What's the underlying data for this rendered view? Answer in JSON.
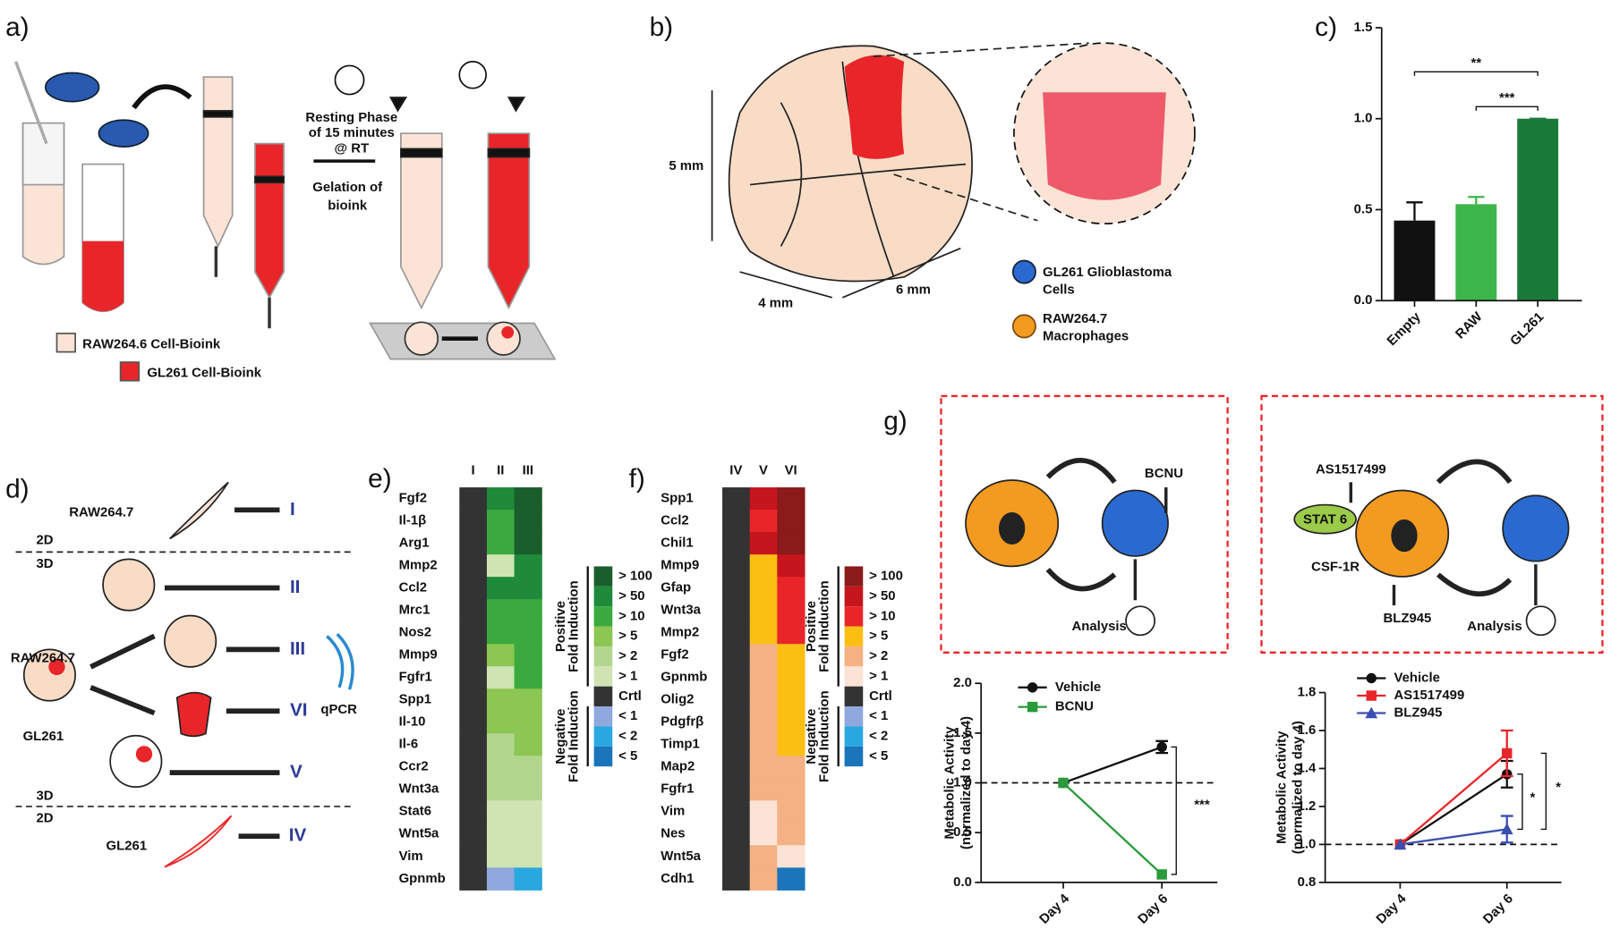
{
  "panel_labels": [
    "a)",
    "b)",
    "c)",
    "d)",
    "e)",
    "f)",
    "g)"
  ],
  "panel_a": {
    "resting": [
      "Resting Phase",
      "of 15 minutes",
      "@ RT"
    ],
    "gelation": [
      "Gelation of",
      "bioink"
    ],
    "legend": [
      "RAW264.6 Cell-Bioink",
      "GL261 Cell-Bioink"
    ]
  },
  "panel_b": {
    "dims": [
      "5 mm",
      "4 mm",
      "6 mm"
    ],
    "legend": [
      [
        "GL261 Glioblastoma",
        "Cells"
      ],
      [
        "RAW264.7",
        "Macrophages"
      ]
    ]
  },
  "panel_d": {
    "texts": [
      "RAW264.7",
      "2D",
      "3D",
      "RAW264.7",
      "GL261",
      "3D",
      "2D",
      "GL261",
      "qPCR"
    ],
    "groups": [
      "I",
      "II",
      "III",
      "VI",
      "V",
      "IV"
    ]
  },
  "panel_g": {
    "left": [
      "BCNU",
      "Analysis"
    ],
    "right": [
      "AS1517499",
      "STAT 6",
      "CSF-1R",
      "BLZ945",
      "Analysis"
    ]
  },
  "chart_data": [
    {
      "type": "bar",
      "categories": [
        "Empty",
        "RAW",
        "GL261"
      ],
      "values": [
        0.44,
        0.53,
        1.0
      ],
      "errors": [
        0.1,
        0.04,
        0
      ],
      "colors": [
        "#111111",
        "#3cb54a",
        "#1a7a3a"
      ],
      "ylim": [
        0,
        1.5
      ],
      "yticks": [
        {
          "value": 0,
          "label": "0.0"
        },
        0.5,
        {
          "value": 1,
          "label": "1.0"
        },
        1.5
      ],
      "annotations": [
        "**",
        "***"
      ]
    },
    {
      "type": "heatmap",
      "columns": [
        "I",
        "II",
        "III"
      ],
      "rows": [
        "Fgf2",
        "Il-1β",
        "Arg1",
        "Mmp2",
        "Ccl2",
        "Mrc1",
        "Nos2",
        "Mmp9",
        "Fgfr1",
        "Spp1",
        "Il-10",
        "Il-6",
        "Ccr2",
        "Wnt3a",
        "Stat6",
        "Wnt5a",
        "Vim",
        "Gpnmb"
      ],
      "cells": [
        [
          "#333333",
          "#1f8a3a",
          "#1a5e2c"
        ],
        [
          "#333333",
          "#3aaa3f",
          "#1a5e2c"
        ],
        [
          "#333333",
          "#3aaa3f",
          "#1a5e2c"
        ],
        [
          "#333333",
          "#cfe4b2",
          "#1f8a3a"
        ],
        [
          "#333333",
          "#1f8a3a",
          "#1f8a3a"
        ],
        [
          "#333333",
          "#3aaa3f",
          "#3aaa3f"
        ],
        [
          "#333333",
          "#3aaa3f",
          "#3aaa3f"
        ],
        [
          "#333333",
          "#8cc653",
          "#3aaa3f"
        ],
        [
          "#333333",
          "#cfe4b2",
          "#3aaa3f"
        ],
        [
          "#333333",
          "#8cc653",
          "#8cc653"
        ],
        [
          "#333333",
          "#8cc653",
          "#8cc653"
        ],
        [
          "#333333",
          "#b3d68f",
          "#8cc653"
        ],
        [
          "#333333",
          "#b3d68f",
          "#b3d68f"
        ],
        [
          "#333333",
          "#b3d68f",
          "#b3d68f"
        ],
        [
          "#333333",
          "#cfe4b2",
          "#cfe4b2"
        ],
        [
          "#333333",
          "#cfe4b2",
          "#cfe4b2"
        ],
        [
          "#333333",
          "#cfe4b2",
          "#cfe4b2"
        ],
        [
          "#333333",
          "#8fa8dd",
          "#29a8e0"
        ]
      ],
      "legend": [
        {
          "label": "> 100",
          "color": "#1a5e2c"
        },
        {
          "label": "> 50",
          "color": "#1f8a3a"
        },
        {
          "label": "> 10",
          "color": "#3aaa3f"
        },
        {
          "label": "> 5",
          "color": "#8cc653"
        },
        {
          "label": "> 2",
          "color": "#b3d68f"
        },
        {
          "label": "> 1",
          "color": "#cfe4b2"
        },
        {
          "label": "Crtl",
          "color": "#333333"
        },
        {
          "label": "< 1",
          "color": "#8fa8dd"
        },
        {
          "label": "< 2",
          "color": "#29a8e0"
        },
        {
          "label": "< 5",
          "color": "#1b75bb"
        }
      ],
      "legend_titles": [
        [
          "Positive",
          "Fold Induction"
        ],
        [
          "Negative",
          "Fold Induction"
        ]
      ]
    },
    {
      "type": "heatmap",
      "columns": [
        "IV",
        "V",
        "VI"
      ],
      "rows": [
        "Spp1",
        "Ccl2",
        "Chil1",
        "Mmp9",
        "Gfap",
        "Wnt3a",
        "Mmp2",
        "Fgf2",
        "Gpnmb",
        "Olig2",
        "Pdgfrβ",
        "Timp1",
        "Map2",
        "Fgfr1",
        "Vim",
        "Nes",
        "Wnt5a",
        "Cdh1"
      ],
      "cells": [
        [
          "#333333",
          "#c4161c",
          "#8b1a1a"
        ],
        [
          "#333333",
          "#e8262a",
          "#8b1a1a"
        ],
        [
          "#333333",
          "#c4161c",
          "#8b1a1a"
        ],
        [
          "#333333",
          "#fbbf14",
          "#c4161c"
        ],
        [
          "#333333",
          "#fbbf14",
          "#e8262a"
        ],
        [
          "#333333",
          "#fbbf14",
          "#e8262a"
        ],
        [
          "#333333",
          "#fbbf14",
          "#e8262a"
        ],
        [
          "#333333",
          "#f4b183",
          "#fbbf14"
        ],
        [
          "#333333",
          "#f4b183",
          "#fbbf14"
        ],
        [
          "#333333",
          "#f4b183",
          "#fbbf14"
        ],
        [
          "#333333",
          "#f4b183",
          "#fbbf14"
        ],
        [
          "#333333",
          "#f4b183",
          "#fbbf14"
        ],
        [
          "#333333",
          "#f4b183",
          "#f4b183"
        ],
        [
          "#333333",
          "#f4b183",
          "#f4b183"
        ],
        [
          "#333333",
          "#fbe3d6",
          "#f4b183"
        ],
        [
          "#333333",
          "#fbe3d6",
          "#f4b183"
        ],
        [
          "#333333",
          "#f4b183",
          "#fbe3d6"
        ],
        [
          "#333333",
          "#f4b183",
          "#1b75bb"
        ]
      ],
      "legend": [
        {
          "label": "> 100",
          "color": "#8b1a1a"
        },
        {
          "label": "> 50",
          "color": "#c4161c"
        },
        {
          "label": "> 10",
          "color": "#e8262a"
        },
        {
          "label": "> 5",
          "color": "#fbbf14"
        },
        {
          "label": "> 2",
          "color": "#f4b183"
        },
        {
          "label": "> 1",
          "color": "#fbe3d6"
        },
        {
          "label": "Crtl",
          "color": "#333333"
        },
        {
          "label": "< 1",
          "color": "#8fa8dd"
        },
        {
          "label": "< 2",
          "color": "#29a8e0"
        },
        {
          "label": "< 5",
          "color": "#1b75bb"
        }
      ],
      "legend_titles": [
        [
          "Positive",
          "Fold Induction"
        ],
        [
          "Negative",
          "Fold Induction"
        ]
      ]
    },
    {
      "type": "line",
      "categories": [
        "Day 4",
        "Day 6"
      ],
      "series": [
        {
          "name": "Vehicle",
          "color": "#111111",
          "marker": "circle",
          "values": [
            1.0,
            1.36
          ],
          "errors": [
            0,
            0.06
          ]
        },
        {
          "name": "BCNU",
          "color": "#2a9a3a",
          "marker": "square",
          "values": [
            1.0,
            0.08
          ],
          "errors": [
            0,
            0
          ]
        }
      ],
      "ylim": [
        0,
        2
      ],
      "yticks": [
        {
          "value": 0,
          "label": "0.0"
        },
        0.5,
        {
          "value": 1,
          "label": "1.0"
        },
        1.5,
        {
          "value": 2,
          "label": "2.0"
        }
      ],
      "hline": 1,
      "ylabel": [
        "Metabolic Activity",
        "(normalized to day 4)"
      ],
      "annotations": [
        "***"
      ]
    },
    {
      "type": "line",
      "categories": [
        "Day 4",
        "Day 6"
      ],
      "series": [
        {
          "name": "Vehicle",
          "color": "#111111",
          "marker": "circle",
          "values": [
            1.0,
            1.37
          ],
          "errors": [
            0,
            0.07
          ]
        },
        {
          "name": "AS1517499",
          "color": "#e8262a",
          "marker": "square",
          "values": [
            1.0,
            1.48
          ],
          "errors": [
            0,
            0.12
          ]
        },
        {
          "name": "BLZ945",
          "color": "#3a4fb0",
          "marker": "triangle",
          "values": [
            1.0,
            1.08
          ],
          "errors": [
            0,
            0.07
          ]
        }
      ],
      "ylim": [
        0.8,
        1.8
      ],
      "yticks": [
        0.8,
        {
          "value": 1,
          "label": "1.0"
        },
        1.2,
        1.4,
        1.6,
        1.8
      ],
      "hline": 1,
      "ylabel": [
        "Metabolic Activity",
        "(normalized to day 4)"
      ],
      "annotations": [
        "*",
        "*"
      ]
    }
  ]
}
